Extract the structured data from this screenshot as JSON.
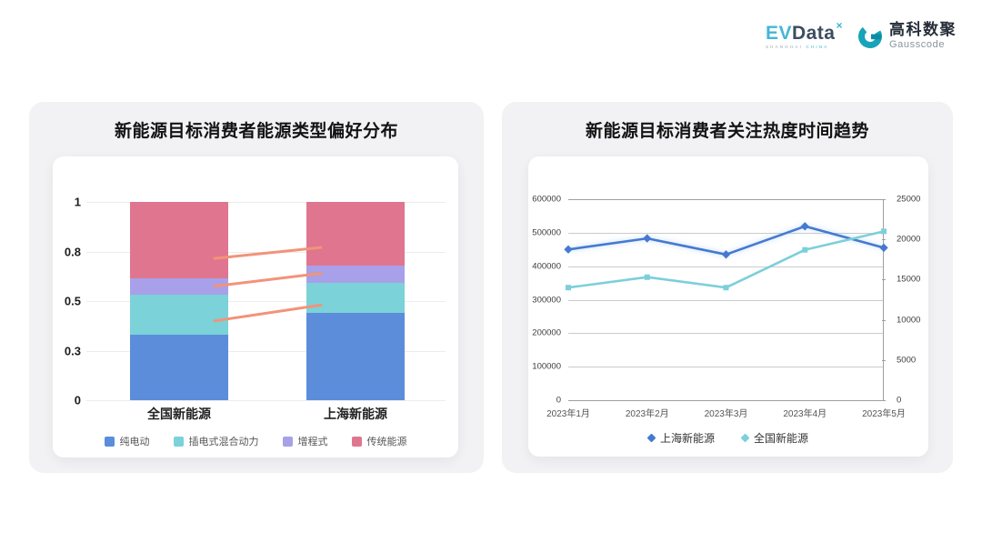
{
  "header": {
    "evdata_logo": {
      "ev": "EV",
      "data": "Data",
      "sup": "×",
      "sub_left": "SHANGHAI",
      "sub_right": "CHINA"
    },
    "gausscode_logo": {
      "cn": "高科数聚",
      "en": "Gausscode"
    },
    "brand_teal": "#1aa7bd",
    "brand_slate": "#3d4c61"
  },
  "chart_data": [
    {
      "type": "bar",
      "stacked": true,
      "title": "新能源目标消费者能源类型偏好分布",
      "categories": [
        "全国新能源",
        "上海新能源"
      ],
      "series": [
        {
          "name": "纯电动",
          "color": "#5b8ddb",
          "values": [
            0.33,
            0.44
          ]
        },
        {
          "name": "插电式混合动力",
          "color": "#7bd2d8",
          "values": [
            0.2,
            0.15
          ]
        },
        {
          "name": "增程式",
          "color": "#a8a0e8",
          "values": [
            0.085,
            0.09
          ]
        },
        {
          "name": "传统能源",
          "color": "#e0758f",
          "values": [
            0.385,
            0.32
          ]
        }
      ],
      "ylim": [
        0,
        1
      ],
      "y_ticks": [
        {
          "label": "1",
          "pos": 1
        },
        {
          "label": "0.8",
          "pos": 0.75
        },
        {
          "label": "0.5",
          "pos": 0.5
        },
        {
          "label": "0.3",
          "pos": 0.25
        },
        {
          "label": "0",
          "pos": 0
        }
      ],
      "grid": true,
      "legend_position": "bottom",
      "connectors": {
        "color": "#f2937a",
        "lines": [
          {
            "from": 0.715,
            "to": 0.77
          },
          {
            "from": 0.575,
            "to": 0.64
          },
          {
            "from": 0.4,
            "to": 0.48
          }
        ]
      }
    },
    {
      "type": "line",
      "title": "新能源目标消费者关注热度时间趋势",
      "x": [
        "2023年1月",
        "2023年2月",
        "2023年3月",
        "2023年4月",
        "2023年5月"
      ],
      "left_axis": {
        "range": [
          0,
          600000
        ],
        "tick_labels": [
          "600000",
          "500000",
          "400000",
          "300000",
          "200000",
          "100000",
          "0"
        ]
      },
      "right_axis": {
        "range": [
          0,
          25000
        ],
        "tick_labels": [
          "25000",
          "20000",
          "15000",
          "10000",
          "5000",
          "0"
        ]
      },
      "series": [
        {
          "name": "上海新能源",
          "axis": "left",
          "color": "#4679cf",
          "marker": "diamond",
          "values": [
            450000,
            483000,
            435000,
            519000,
            455000
          ]
        },
        {
          "name": "全国新能源",
          "axis": "right",
          "color": "#7ccfdb",
          "marker": "square",
          "values": [
            14000,
            15300,
            14000,
            18700,
            21000
          ]
        }
      ],
      "grid": true,
      "legend_position": "bottom"
    }
  ]
}
